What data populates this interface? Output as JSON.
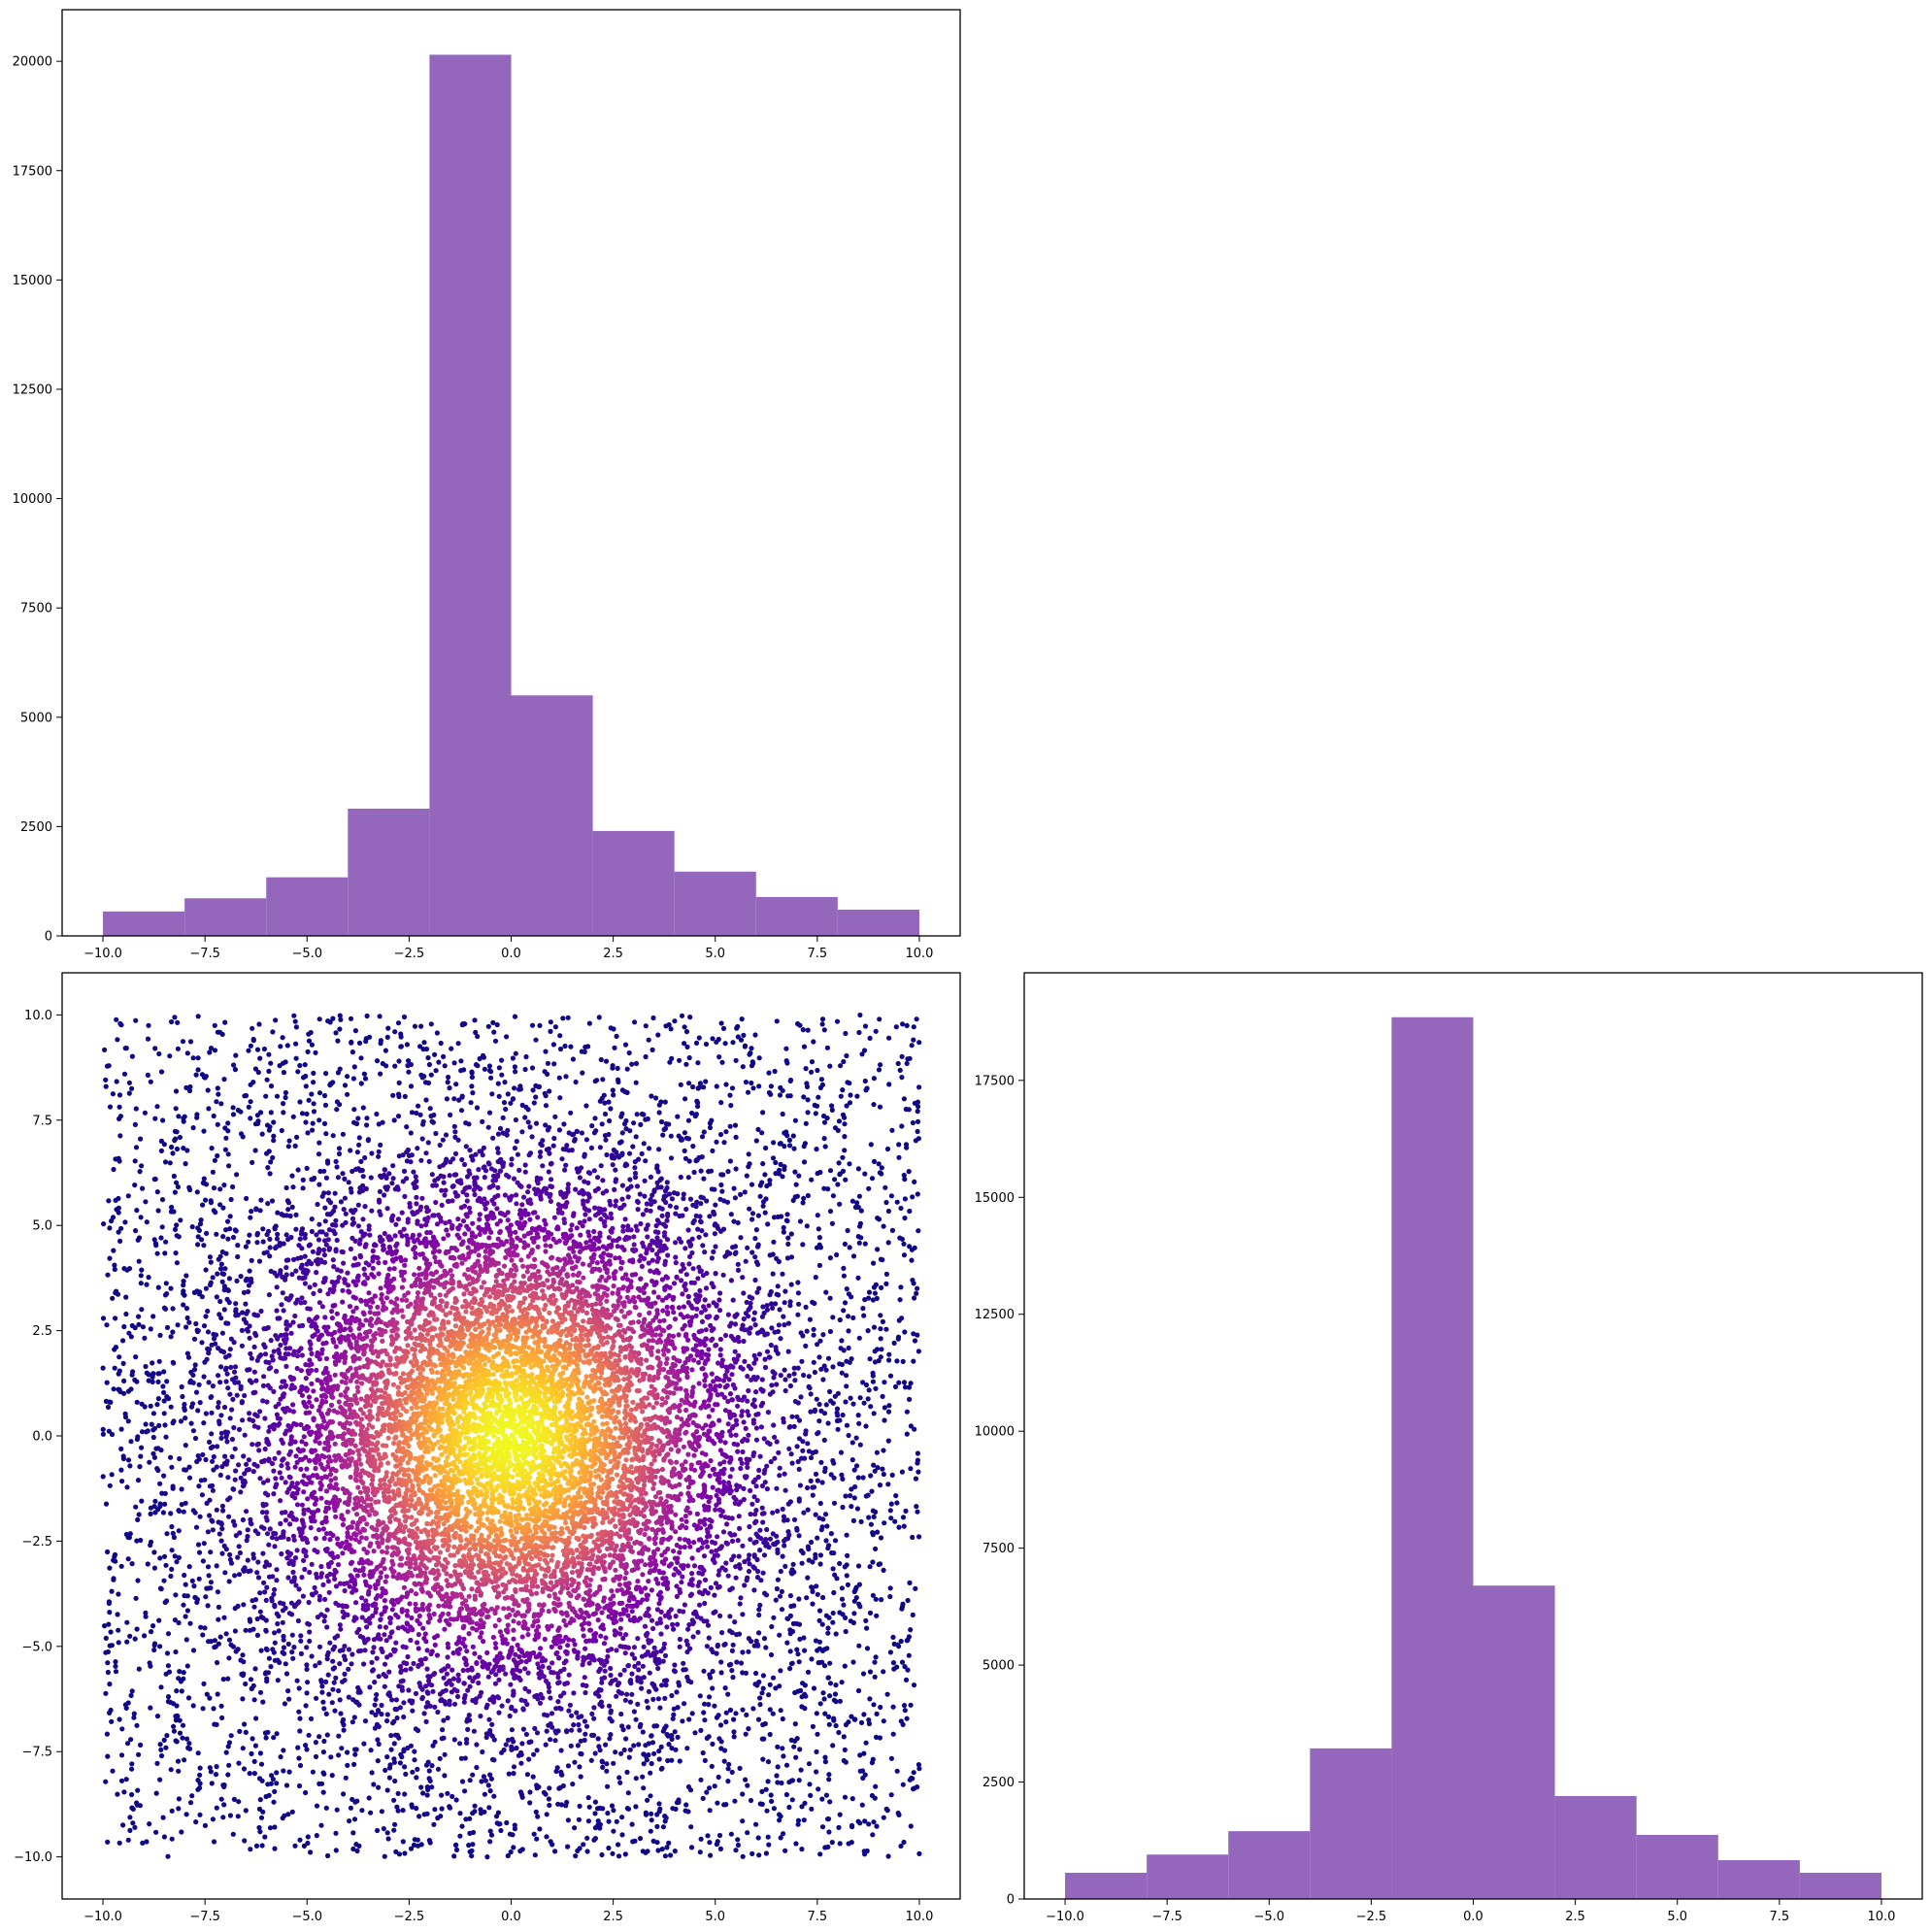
{
  "chart_data": [
    {
      "id": "top-left-histogram",
      "type": "bar",
      "title": "",
      "xlabel": "",
      "ylabel": "",
      "bin_edges": [
        -10,
        -8,
        -6,
        -4,
        -2,
        0,
        2,
        4,
        6,
        8,
        10
      ],
      "values": [
        560,
        860,
        1340,
        2910,
        20150,
        5500,
        2400,
        1470,
        890,
        600
      ],
      "xlim": [
        -11,
        11
      ],
      "ylim": [
        0,
        21180
      ],
      "xticks": [
        -10,
        -7.5,
        -5,
        -2.5,
        0,
        2.5,
        5,
        7.5,
        10
      ],
      "xtick_labels": [
        "−10.0",
        "−7.5",
        "−5.0",
        "−2.5",
        "0.0",
        "2.5",
        "5.0",
        "7.5",
        "10.0"
      ],
      "yticks": [
        0,
        2500,
        5000,
        7500,
        10000,
        12500,
        15000,
        17500,
        20000
      ],
      "ytick_labels": [
        "0",
        "2500",
        "5000",
        "7500",
        "10000",
        "12500",
        "15000",
        "17500",
        "20000"
      ],
      "grid": false,
      "color": "#9467bd"
    },
    {
      "id": "bottom-left-scatter",
      "type": "scatter",
      "title": "",
      "xlabel": "",
      "ylabel": "",
      "x_range_of_points": [
        -10,
        10
      ],
      "y_range_of_points": [
        -10,
        10
      ],
      "density_peak": [
        0,
        0
      ],
      "colormap": "plasma",
      "colormap_low": "#0d0887",
      "colormap_high": "#f0f921",
      "xlim": [
        -11,
        11
      ],
      "ylim": [
        -11,
        11
      ],
      "xticks": [
        -10,
        -7.5,
        -5,
        -2.5,
        0,
        2.5,
        5,
        7.5,
        10
      ],
      "xtick_labels": [
        "−10.0",
        "−7.5",
        "−5.0",
        "−2.5",
        "0.0",
        "2.5",
        "5.0",
        "7.5",
        "10.0"
      ],
      "yticks": [
        -10,
        -7.5,
        -5,
        -2.5,
        0,
        2.5,
        5,
        7.5,
        10
      ],
      "ytick_labels": [
        "−10.0",
        "−7.5",
        "−5.0",
        "−2.5",
        "0.0",
        "2.5",
        "5.0",
        "7.5",
        "10.0"
      ],
      "grid": false
    },
    {
      "id": "bottom-right-histogram",
      "type": "bar",
      "title": "",
      "xlabel": "",
      "ylabel": "",
      "bin_edges": [
        -10,
        -8,
        -6,
        -4,
        -2,
        0,
        2,
        4,
        6,
        8,
        10
      ],
      "values": [
        560,
        950,
        1450,
        3220,
        18850,
        6700,
        2200,
        1370,
        830,
        560
      ],
      "xlim": [
        -11,
        11
      ],
      "ylim": [
        0,
        19800
      ],
      "xticks": [
        -10,
        -7.5,
        -5,
        -2.5,
        0,
        2.5,
        5,
        7.5,
        10
      ],
      "xtick_labels": [
        "−10.0",
        "−7.5",
        "−5.0",
        "−2.5",
        "0.0",
        "2.5",
        "5.0",
        "7.5",
        "10.0"
      ],
      "yticks": [
        0,
        2500,
        5000,
        7500,
        10000,
        12500,
        15000,
        17500
      ],
      "ytick_labels": [
        "0",
        "2500",
        "5000",
        "7500",
        "10000",
        "12500",
        "15000",
        "17500"
      ],
      "grid": false,
      "color": "#9467bd"
    }
  ]
}
